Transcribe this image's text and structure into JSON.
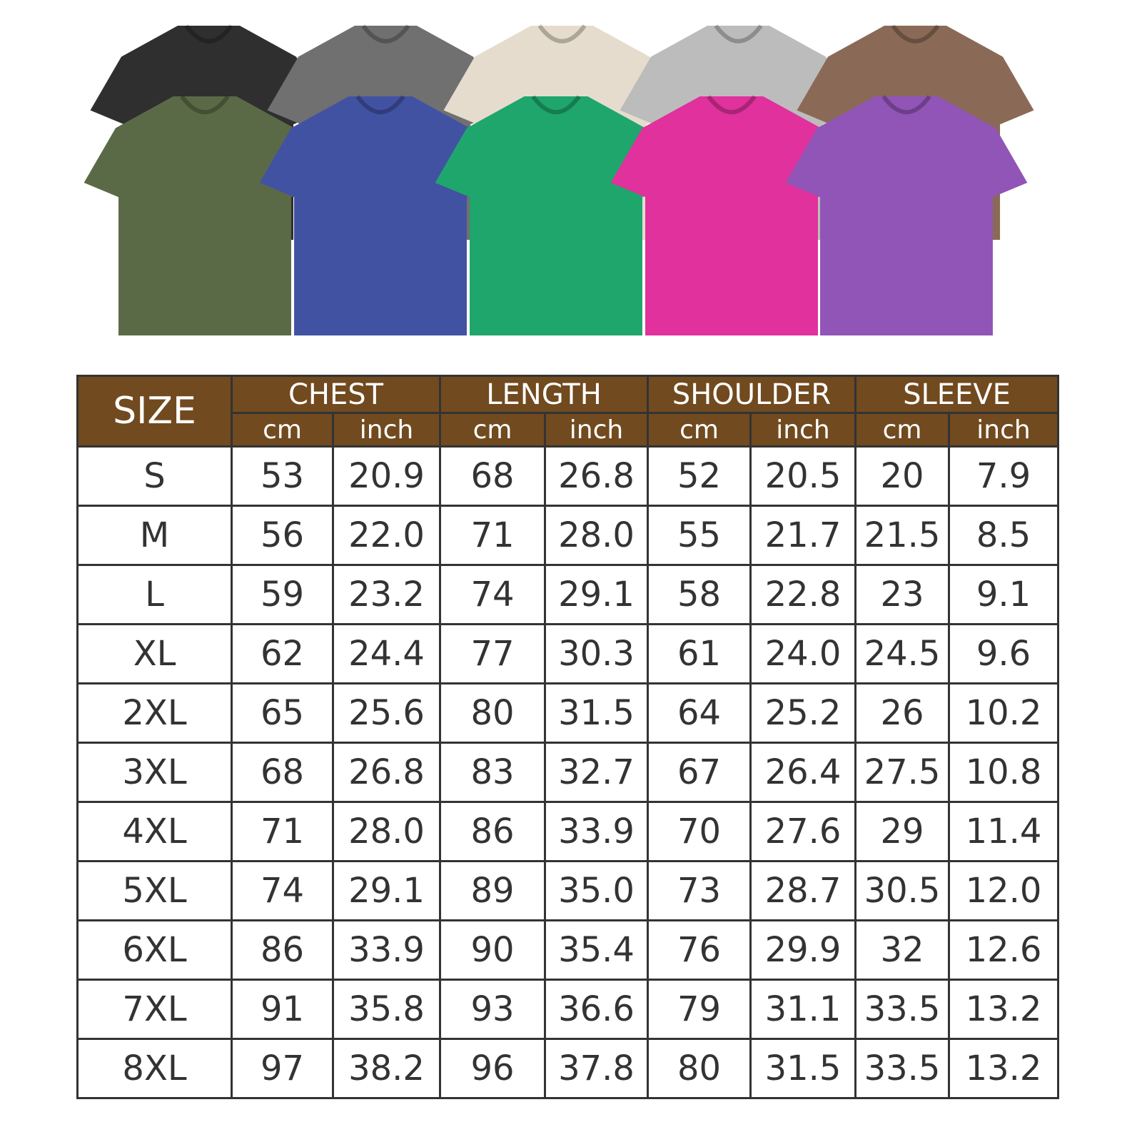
{
  "shirts": {
    "back_row": [
      {
        "color": "#2f2f2f"
      },
      {
        "color": "#707070"
      },
      {
        "color": "#e6dccd"
      },
      {
        "color": "#bcbcbc"
      },
      {
        "color": "#8a6a56"
      }
    ],
    "front_row": [
      {
        "color": "#5b6a46"
      },
      {
        "color": "#4252a3"
      },
      {
        "color": "#1fa66c"
      },
      {
        "color": "#e0319c"
      },
      {
        "color": "#9055b6"
      }
    ]
  },
  "header_color": "#714a1f",
  "table": {
    "size_label": "SIZE",
    "groups": [
      {
        "label": "CHEST",
        "units": [
          "cm",
          "inch"
        ]
      },
      {
        "label": "LENGTH",
        "units": [
          "cm",
          "inch"
        ]
      },
      {
        "label": "SHOULDER",
        "units": [
          "cm",
          "inch"
        ]
      },
      {
        "label": "SLEEVE",
        "units": [
          "cm",
          "inch"
        ]
      }
    ],
    "rows": [
      [
        "S",
        "53",
        "20.9",
        "68",
        "26.8",
        "52",
        "20.5",
        "20",
        "7.9"
      ],
      [
        "M",
        "56",
        "22.0",
        "71",
        "28.0",
        "55",
        "21.7",
        "21.5",
        "8.5"
      ],
      [
        "L",
        "59",
        "23.2",
        "74",
        "29.1",
        "58",
        "22.8",
        "23",
        "9.1"
      ],
      [
        "XL",
        "62",
        "24.4",
        "77",
        "30.3",
        "61",
        "24.0",
        "24.5",
        "9.6"
      ],
      [
        "2XL",
        "65",
        "25.6",
        "80",
        "31.5",
        "64",
        "25.2",
        "26",
        "10.2"
      ],
      [
        "3XL",
        "68",
        "26.8",
        "83",
        "32.7",
        "67",
        "26.4",
        "27.5",
        "10.8"
      ],
      [
        "4XL",
        "71",
        "28.0",
        "86",
        "33.9",
        "70",
        "27.6",
        "29",
        "11.4"
      ],
      [
        "5XL",
        "74",
        "29.1",
        "89",
        "35.0",
        "73",
        "28.7",
        "30.5",
        "12.0"
      ],
      [
        "6XL",
        "86",
        "33.9",
        "90",
        "35.4",
        "76",
        "29.9",
        "32",
        "12.6"
      ],
      [
        "7XL",
        "91",
        "35.8",
        "93",
        "36.6",
        "79",
        "31.1",
        "33.5",
        "13.2"
      ],
      [
        "8XL",
        "97",
        "38.2",
        "96",
        "37.8",
        "80",
        "31.5",
        "33.5",
        "13.2"
      ]
    ]
  }
}
